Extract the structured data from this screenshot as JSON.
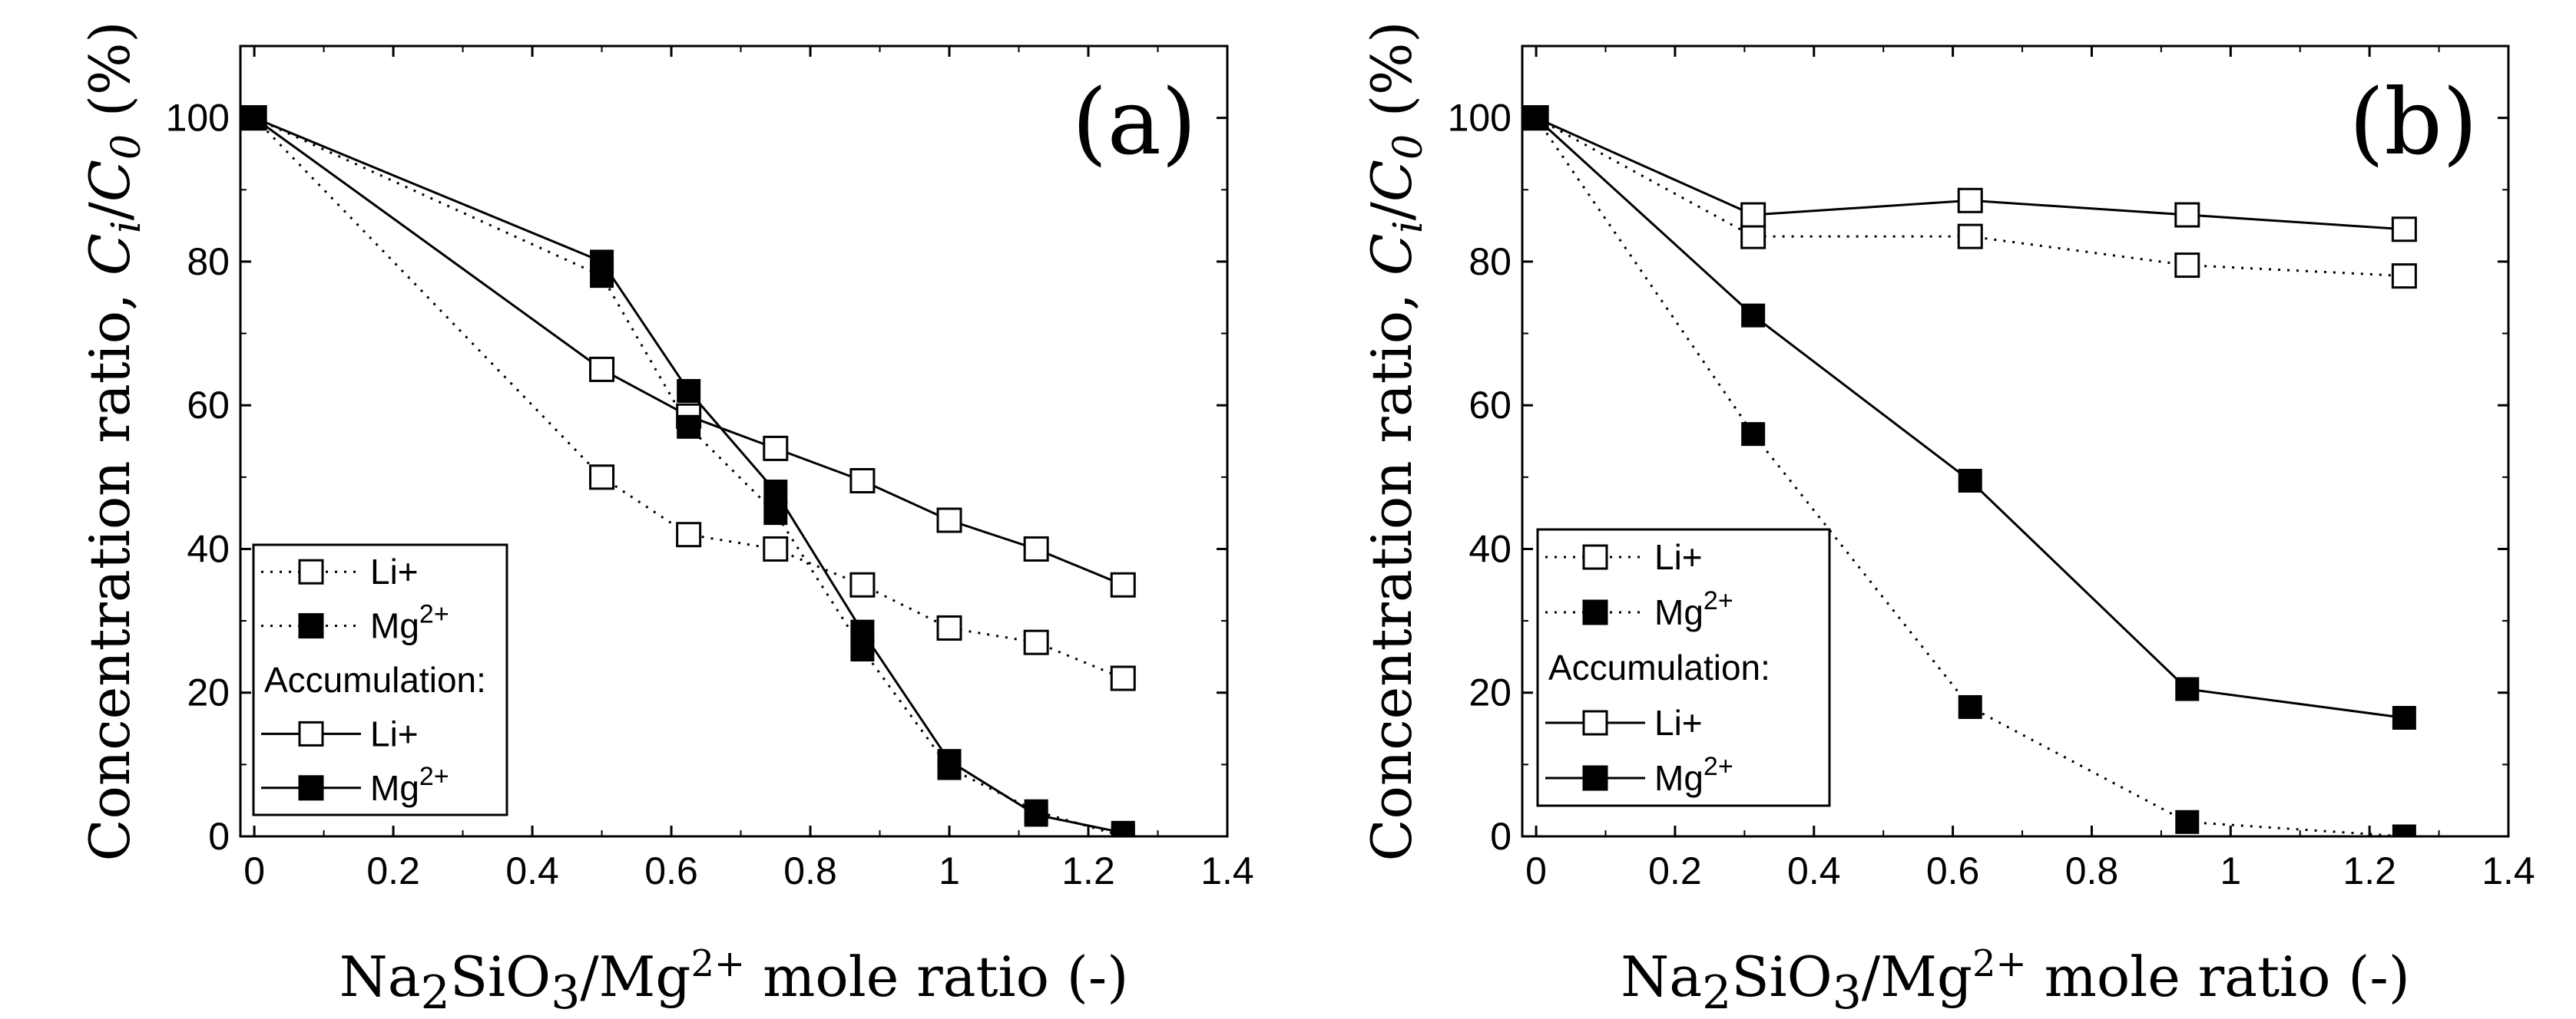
{
  "figure": {
    "x_axis_title": {
      "pre": "Na",
      "sub1": "2",
      "mid": "SiO",
      "sub2": "3",
      "mid2": "/Mg",
      "sup": "2+",
      "post": " mole ratio  (-)"
    },
    "y_axis_title": {
      "pre": "Concentration ratio, ",
      "c": "C",
      "sub_i": "i",
      "slash": "/",
      "c0": "C",
      "sub_0": "0",
      "post": " (%)"
    }
  },
  "legend": {
    "li_label": "Li+",
    "mg_label": "Mg",
    "mg_sup": "2+",
    "accumulation_label": "Accumulation:"
  },
  "chart_data": [
    {
      "type": "line",
      "panel_label": "(a)",
      "xlabel": "Na2SiO3/Mg2+ mole ratio  (-)",
      "ylabel": "Concentration ratio, Ci/C0 (%)",
      "xlim": [
        -0.02,
        1.4
      ],
      "ylim": [
        0,
        110
      ],
      "xticks": [
        0,
        0.2,
        0.4,
        0.6,
        0.8,
        1,
        1.2,
        1.4
      ],
      "xtick_labels": [
        "0",
        "0.2",
        "0.4",
        "0.6",
        "0.8",
        "1",
        "1.2",
        "1.4"
      ],
      "yticks": [
        0,
        20,
        40,
        60,
        80,
        100
      ],
      "ytick_labels": [
        "0",
        "20",
        "40",
        "60",
        "80",
        "100"
      ],
      "series": [
        {
          "name": "Li+",
          "style": "dotted",
          "marker": "open-square",
          "x": [
            0,
            0.5,
            0.625,
            0.75,
            0.875,
            1.0,
            1.125,
            1.25
          ],
          "y": [
            100,
            50,
            42,
            40,
            35,
            29,
            27,
            22
          ]
        },
        {
          "name": "Mg2+",
          "style": "dotted",
          "marker": "filled-square",
          "x": [
            0,
            0.5,
            0.625,
            0.75,
            0.875,
            1.0,
            1.125,
            1.25
          ],
          "y": [
            100,
            78,
            57,
            45,
            26,
            9.5,
            3.5,
            0
          ]
        },
        {
          "name": "Accumulation: Li+",
          "style": "solid",
          "marker": "open-square",
          "x": [
            0,
            0.5,
            0.625,
            0.75,
            0.875,
            1.0,
            1.125,
            1.25
          ],
          "y": [
            100,
            65,
            58.5,
            54,
            49.5,
            44,
            40,
            35
          ]
        },
        {
          "name": "Accumulation: Mg2+",
          "style": "solid",
          "marker": "filled-square",
          "x": [
            0,
            0.5,
            0.625,
            0.75,
            0.875,
            1.0,
            1.125,
            1.25
          ],
          "y": [
            100,
            80,
            62,
            48,
            28.5,
            10.5,
            3,
            0.5
          ]
        }
      ]
    },
    {
      "type": "line",
      "panel_label": "(b)",
      "xlabel": "Na2SiO3/Mg2+ mole ratio  (-)",
      "ylabel": "Concentration ratio, Ci/C0 (%)",
      "xlim": [
        -0.02,
        1.4
      ],
      "ylim": [
        0,
        110
      ],
      "xticks": [
        0,
        0.2,
        0.4,
        0.6,
        0.8,
        1,
        1.2,
        1.4
      ],
      "xtick_labels": [
        "0",
        "0.2",
        "0.4",
        "0.6",
        "0.8",
        "1",
        "1.2",
        "1.4"
      ],
      "yticks": [
        0,
        20,
        40,
        60,
        80,
        100
      ],
      "ytick_labels": [
        "0",
        "20",
        "40",
        "60",
        "80",
        "100"
      ],
      "series": [
        {
          "name": "Li+",
          "style": "dotted",
          "marker": "open-square",
          "x": [
            0,
            0.3125,
            0.625,
            0.9375,
            1.25
          ],
          "y": [
            100,
            83.5,
            83.5,
            79.5,
            78
          ]
        },
        {
          "name": "Mg2+",
          "style": "dotted",
          "marker": "filled-square",
          "x": [
            0,
            0.3125,
            0.625,
            0.9375,
            1.25
          ],
          "y": [
            100,
            56,
            18,
            2,
            0
          ]
        },
        {
          "name": "Accumulation: Li+",
          "style": "solid",
          "marker": "open-square",
          "x": [
            0,
            0.3125,
            0.625,
            0.9375,
            1.25
          ],
          "y": [
            100,
            86.5,
            88.5,
            86.5,
            84.5
          ]
        },
        {
          "name": "Accumulation: Mg2+",
          "style": "solid",
          "marker": "filled-square",
          "x": [
            0,
            0.3125,
            0.625,
            0.9375,
            1.25
          ],
          "y": [
            100,
            72.5,
            49.5,
            20.5,
            16.5
          ]
        }
      ]
    }
  ]
}
